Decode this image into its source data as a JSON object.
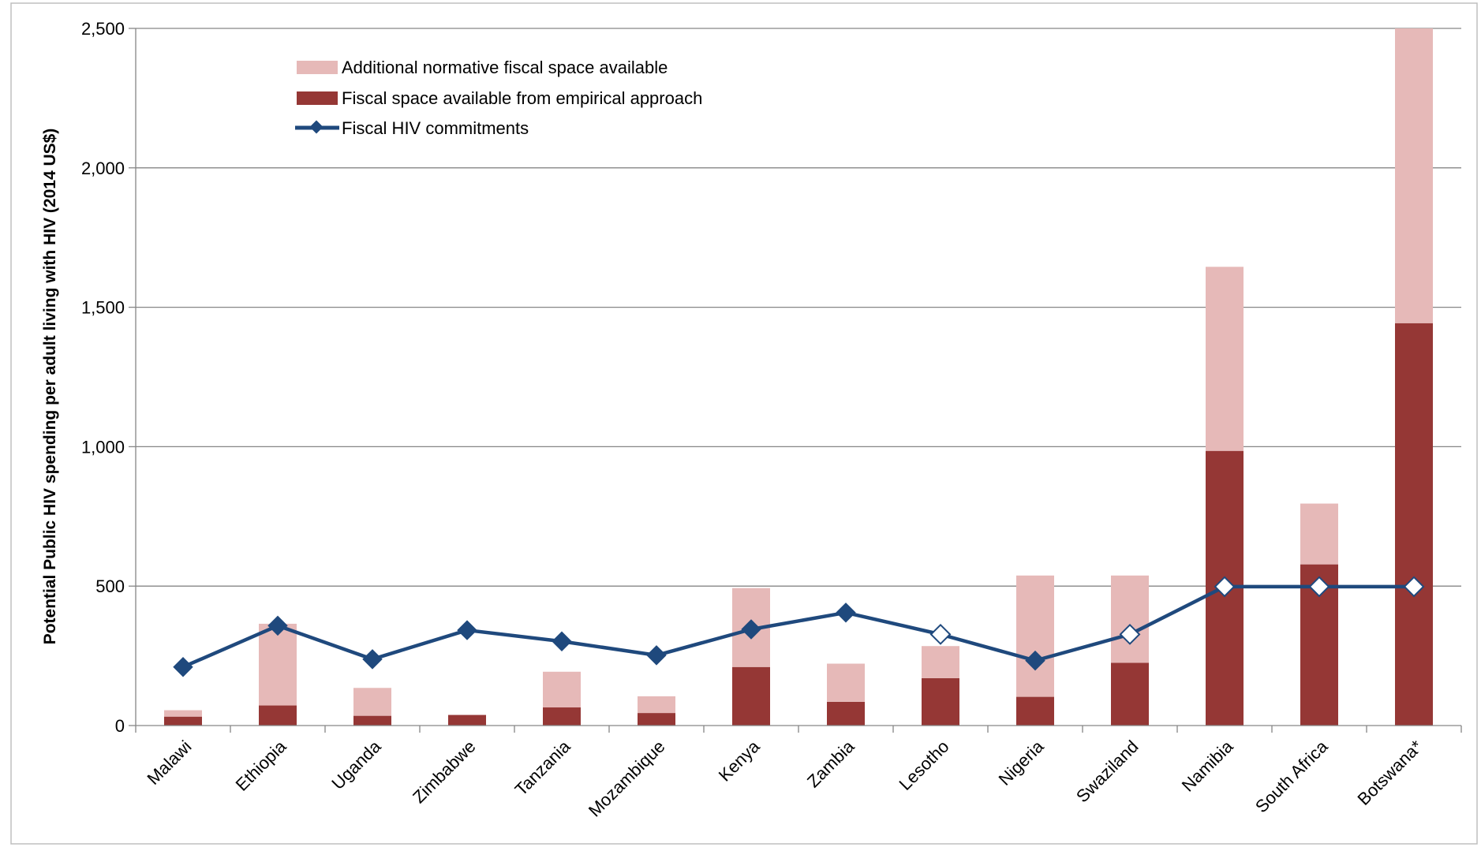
{
  "chart_data": {
    "type": "bar",
    "stacked": true,
    "categories": [
      "Malawi",
      "Ethiopia",
      "Uganda",
      "Zimbabwe",
      "Tanzania",
      "Mozambique",
      "Kenya",
      "Zambia",
      "Lesotho",
      "Nigeria",
      "Swaziland",
      "Namibia",
      "South Africa",
      "Botswana*"
    ],
    "series": [
      {
        "name": "Fiscal space available from empirical approach",
        "type": "bar",
        "color": "#953735",
        "values": [
          32,
          72,
          35,
          38,
          65,
          45,
          210,
          85,
          170,
          103,
          225,
          985,
          578,
          1443
        ]
      },
      {
        "name": "Additional normative fiscal space available",
        "type": "bar",
        "color": "#E6B9B8",
        "values": [
          23,
          293,
          100,
          0,
          128,
          60,
          283,
          137,
          115,
          435,
          313,
          660,
          218,
          1057
        ]
      },
      {
        "name": "Fiscal HIV commitments",
        "type": "line",
        "color": "#1F497D",
        "values": [
          210,
          358,
          238,
          342,
          302,
          252,
          345,
          405,
          327,
          233,
          327,
          498,
          498,
          498
        ],
        "open_marker_categories": [
          "Lesotho",
          "Swaziland",
          "Namibia",
          "South Africa",
          "Botswana*"
        ]
      }
    ],
    "title": "",
    "xlabel": "",
    "ylabel": "Potential Public HIV spending per adult living with HIV (2014 US$)",
    "ylim": [
      0,
      2500
    ],
    "yticks": [
      0,
      500,
      1000,
      1500,
      2000,
      2500
    ],
    "ytick_labels": [
      "0",
      "500",
      "1,000",
      "1,500",
      "2,000",
      "2,500"
    ],
    "grid": true,
    "legend": {
      "position": "top-left",
      "entries": [
        "Additional normative fiscal space available",
        "Fiscal space available from empirical approach",
        "Fiscal HIV commitments"
      ]
    }
  }
}
